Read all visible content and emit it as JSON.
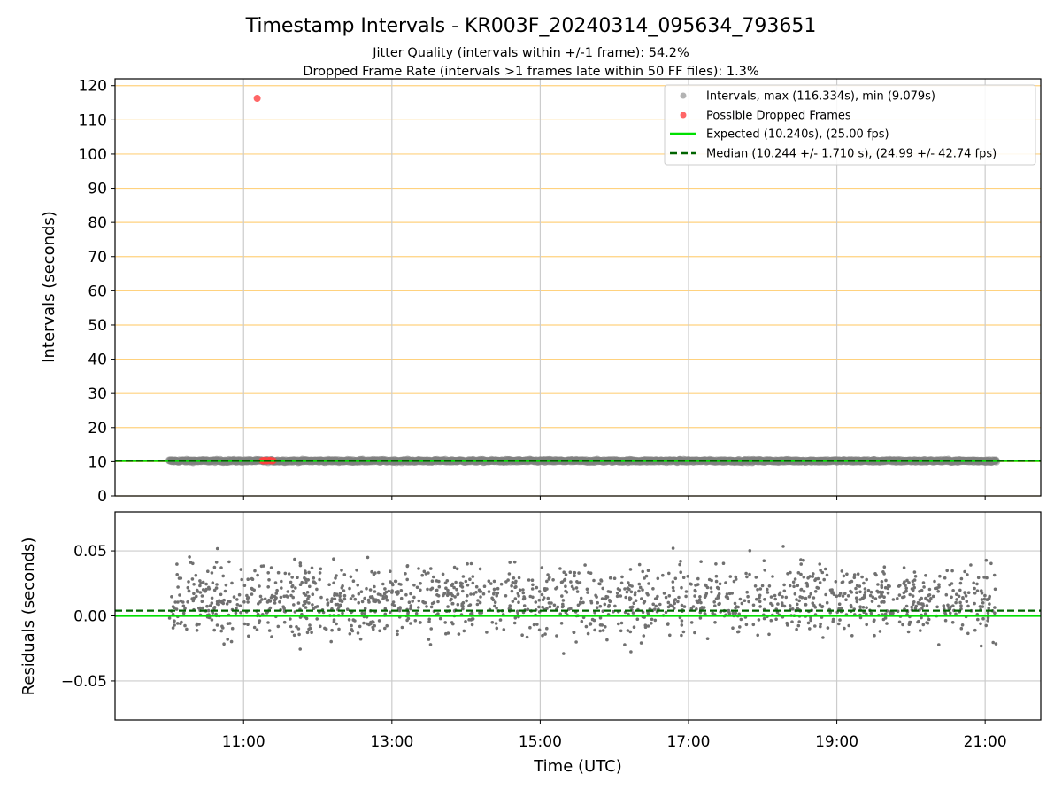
{
  "figure": {
    "title": "Timestamp Intervals - KR003F_20240314_095634_793651",
    "subtitle_1": "Jitter Quality (intervals within +/-1 frame): 54.2%",
    "subtitle_2": "Dropped Frame Rate (intervals >1 frames late within 50 FF files): 1.3%"
  },
  "chart_data": [
    {
      "type": "scatter",
      "panel": "intervals",
      "ylabel": "Intervals (seconds)",
      "xlabel": "",
      "xlim": [
        "09:16",
        "21:45"
      ],
      "ylim": [
        0,
        122
      ],
      "yticks": [
        0,
        10,
        20,
        30,
        40,
        50,
        60,
        70,
        80,
        90,
        100,
        110,
        120
      ],
      "xticks": [
        "11:00",
        "13:00",
        "15:00",
        "17:00",
        "19:00",
        "21:00"
      ],
      "grid": true,
      "horizontal_grid_color": "#ffd27f",
      "vertical_grid_color": "#cccccc",
      "legend_position": "upper right",
      "series": [
        {
          "name": "Intervals, max (116.334s), min (9.079s)",
          "kind": "points",
          "color": "#808080",
          "time_range": [
            "10:00",
            "21:09"
          ],
          "median": 10.24,
          "spread": 0.6,
          "max": 116.334,
          "min": 9.079
        },
        {
          "name": "Possible Dropped Frames",
          "kind": "points",
          "color": "#ff4040",
          "points": [
            {
              "x": "11:11",
              "y": 116.3
            },
            {
              "x": "11:15",
              "y": 10.3
            },
            {
              "x": "11:16",
              "y": 10.2
            },
            {
              "x": "11:17",
              "y": 10.4
            },
            {
              "x": "11:18",
              "y": 10.3
            },
            {
              "x": "11:19",
              "y": 10.2
            },
            {
              "x": "11:20",
              "y": 10.3
            },
            {
              "x": "11:21",
              "y": 10.4
            },
            {
              "x": "11:22",
              "y": 10.3
            },
            {
              "x": "11:23",
              "y": 10.2
            },
            {
              "x": "11:24",
              "y": 10.3
            }
          ]
        },
        {
          "name": "Expected (10.240s), (25.00 fps)",
          "kind": "hline",
          "y": 10.24,
          "color": "#00e000",
          "style": "solid"
        },
        {
          "name": "Median (10.244 +/- 1.710 s), (24.99 +/- 42.74 fps)",
          "kind": "hline",
          "y": 10.244,
          "color": "#006400",
          "style": "dashed"
        }
      ]
    },
    {
      "type": "scatter",
      "panel": "residuals",
      "ylabel": "Residuals (seconds)",
      "xlabel": "Time (UTC)",
      "xlim": [
        "09:16",
        "21:45"
      ],
      "ylim": [
        -0.08,
        0.08
      ],
      "yticks": [
        0.05,
        0.0,
        -0.05
      ],
      "ytick_labels": [
        "0.05",
        "0.00",
        "−0.05"
      ],
      "xticks": [
        "11:00",
        "13:00",
        "15:00",
        "17:00",
        "19:00",
        "21:00"
      ],
      "grid": true,
      "series": [
        {
          "kind": "points",
          "color": "#707070",
          "time_range": [
            "10:00",
            "21:09"
          ],
          "center": 0.012,
          "spread": 0.045
        },
        {
          "kind": "hline",
          "y": 0.0,
          "color": "#00e000",
          "style": "solid"
        },
        {
          "kind": "hline",
          "y": 0.004,
          "color": "#006400",
          "style": "dashed"
        }
      ]
    }
  ]
}
